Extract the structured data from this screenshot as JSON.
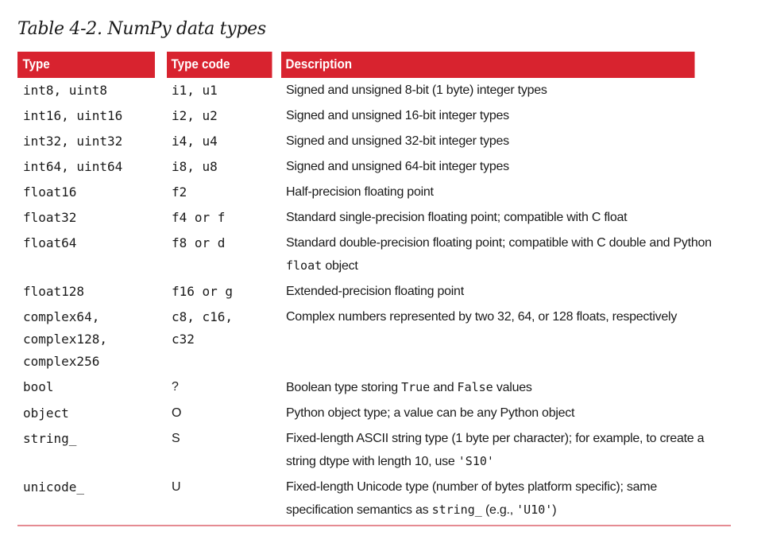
{
  "caption": "Table 4-2. NumPy data types",
  "columns": {
    "type": "Type",
    "type_code": "Type code",
    "description": "Description"
  },
  "rows": [
    {
      "type": "int8, uint8",
      "code": "i1, u1",
      "desc_parts": [
        "Signed and unsigned 8-bit (1 byte) integer types"
      ]
    },
    {
      "type": "int16, uint16",
      "code": "i2, u2",
      "desc_parts": [
        "Signed and unsigned 16-bit integer types"
      ]
    },
    {
      "type": "int32, uint32",
      "code": "i4, u4",
      "desc_parts": [
        "Signed and unsigned 32-bit integer types"
      ]
    },
    {
      "type": "int64, uint64",
      "code": "i8, u8",
      "desc_parts": [
        "Signed and unsigned 64-bit integer types"
      ]
    },
    {
      "type": "float16",
      "code": "f2",
      "desc_parts": [
        "Half-precision floating point"
      ]
    },
    {
      "type": "float32",
      "code": "f4 or f",
      "desc_parts": [
        "Standard single-precision floating point; compatible with C float"
      ]
    },
    {
      "type": "float64",
      "code": "f8 or d",
      "desc_parts": [
        "Standard double-precision floating point; compatible with C double and Python ",
        "float",
        " object"
      ]
    },
    {
      "type": "float128",
      "code": "f16 or g",
      "desc_parts": [
        "Extended-precision floating point"
      ]
    },
    {
      "type": "complex64,\ncomplex128,\ncomplex256",
      "code": "c8, c16,\nc32",
      "desc_parts": [
        "Complex numbers represented by two 32, 64, or 128 floats, respectively"
      ]
    },
    {
      "type": "bool",
      "code": "?",
      "desc_parts": [
        "Boolean type storing ",
        "True",
        " and ",
        "False",
        " values"
      ]
    },
    {
      "type": "object",
      "code": "O",
      "desc_parts": [
        "Python object type; a value can be any Python object"
      ]
    },
    {
      "type": "string_",
      "code": "S",
      "desc_parts": [
        "Fixed-length ASCII string type (1 byte per character); for example, to create a string dtype with length 10, use ",
        "'S10'"
      ]
    },
    {
      "type": "unicode_",
      "code": "U",
      "desc_parts": [
        "Fixed-length Unicode type (number of bytes platform specific); same specification semantics as ",
        "string_",
        " (e.g., ",
        "'U10'",
        ")"
      ]
    }
  ],
  "colors": {
    "header_bg": "#d8232f",
    "header_text": "#ffffff",
    "rule": "#e58b92"
  }
}
